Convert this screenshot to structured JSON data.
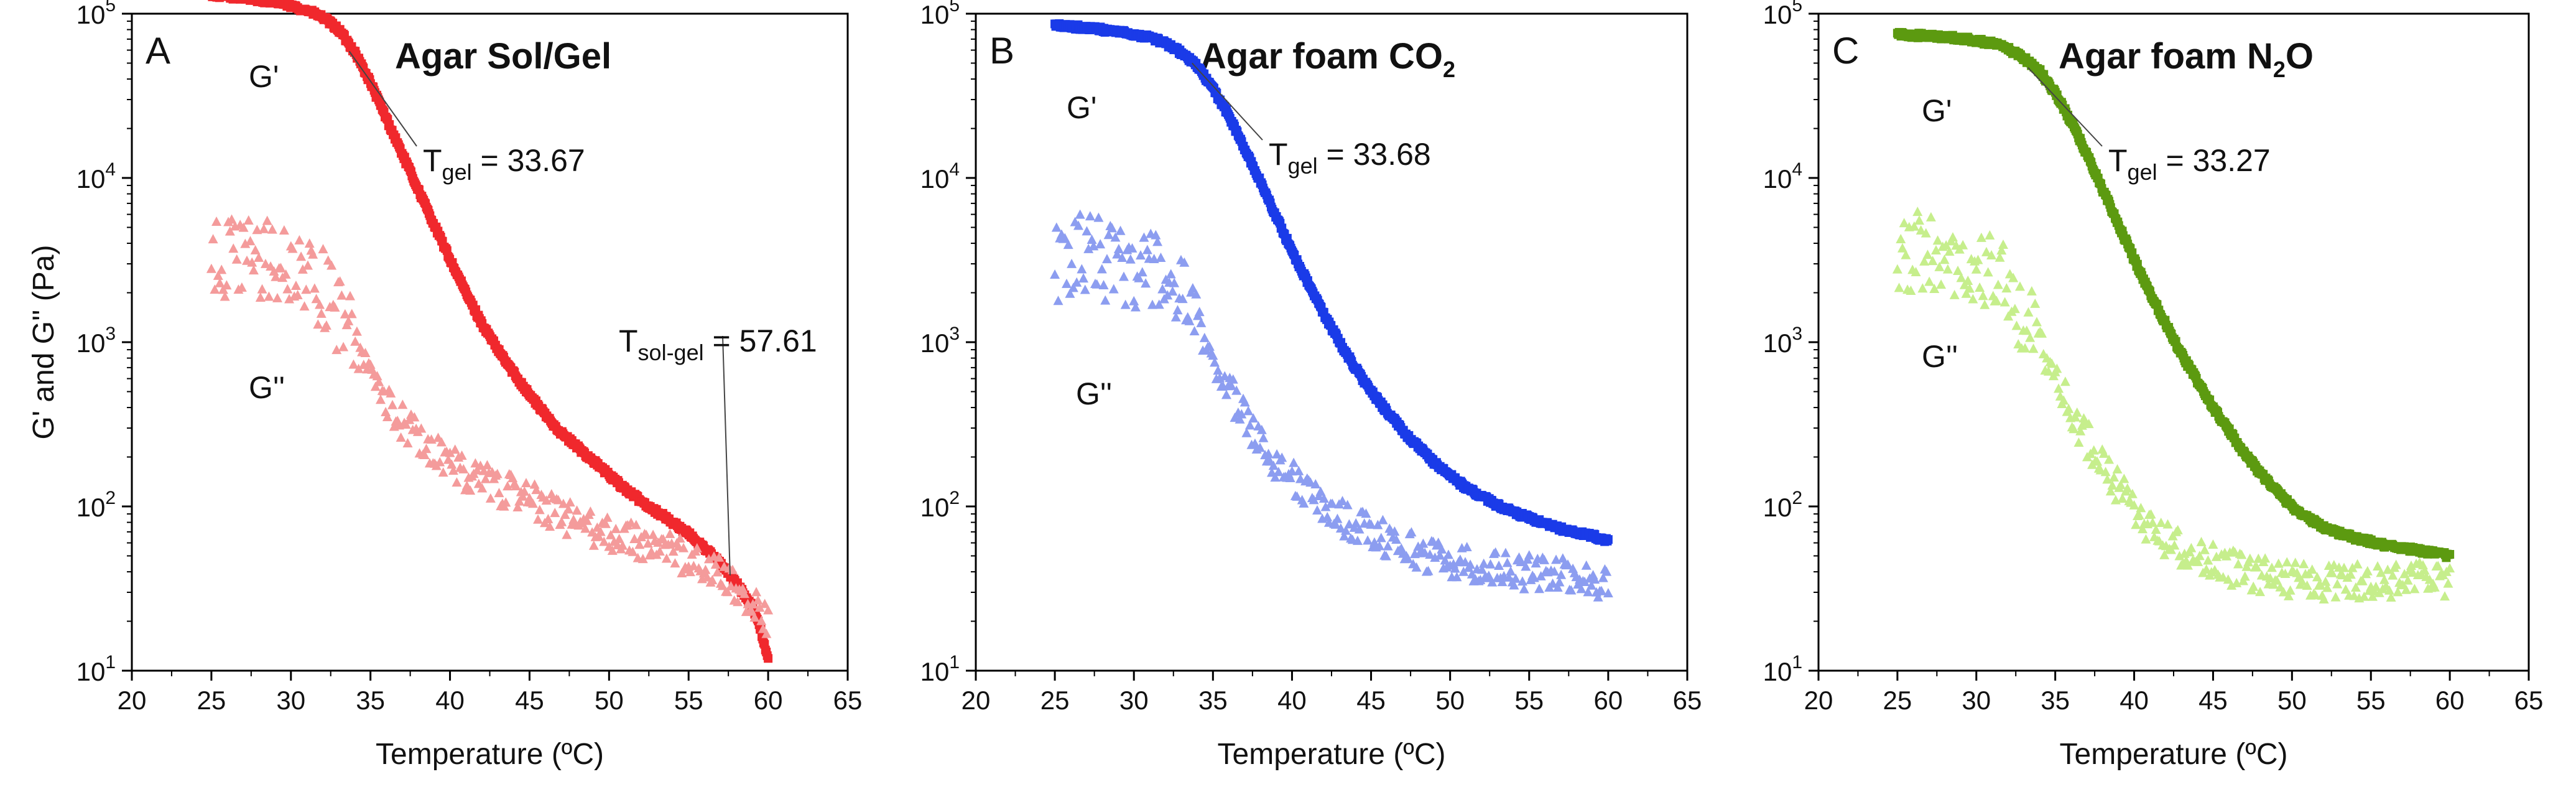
{
  "figure": {
    "panels": [
      {
        "letter": "A",
        "title": "Agar Sol/Gel",
        "title_sub": "",
        "title_suffix": "",
        "gprime_label": "G'",
        "gdouble_label": "G''",
        "annotations": [
          {
            "main": "T",
            "sub": "gel",
            "value": " = 33.67",
            "at_x": 33.67,
            "at_y": 59000
          },
          {
            "main": "T",
            "sub": "sol-gel",
            "value": " = 57.61",
            "at_x": 57.61,
            "at_y": 38
          }
        ]
      },
      {
        "letter": "B",
        "title": "Agar foam CO",
        "title_sub": "2",
        "title_suffix": "",
        "gprime_label": "G'",
        "gdouble_label": "G''",
        "annotations": [
          {
            "main": "T",
            "sub": "gel",
            "value": " = 33.68",
            "at_x": 33.68,
            "at_y": 50000
          }
        ]
      },
      {
        "letter": "C",
        "title": "Agar foam N",
        "title_sub": "2",
        "title_suffix": "O",
        "gprime_label": "G'",
        "gdouble_label": "G''",
        "annotations": [
          {
            "main": "T",
            "sub": "gel",
            "value": " = 33.27",
            "at_x": 33.27,
            "at_y": 47000
          }
        ]
      }
    ]
  },
  "chart_data": [
    {
      "type": "scatter",
      "title": "Agar Sol/Gel",
      "xlabel": "Temperature (ºC)",
      "ylabel": "G' and G'' (Pa)",
      "xlim": [
        20,
        65
      ],
      "ylim": [
        10,
        100000
      ],
      "yscale": "log",
      "xticks": [
        "20",
        "25",
        "30",
        "35",
        "40",
        "45",
        "50",
        "55",
        "60",
        "65"
      ],
      "yticks": [
        {
          "base": "10",
          "exp": "1"
        },
        {
          "base": "10",
          "exp": "2"
        },
        {
          "base": "10",
          "exp": "3"
        },
        {
          "base": "10",
          "exp": "4"
        },
        {
          "base": "10",
          "exp": "5"
        }
      ],
      "series": [
        {
          "name": "G'",
          "marker": "square",
          "color": "#f0282d",
          "x": [
            25,
            27,
            29,
            31,
            32,
            33,
            34,
            35,
            36,
            37,
            38,
            39,
            40,
            41,
            42,
            43,
            44,
            45,
            46,
            47,
            48,
            49,
            50,
            51,
            52,
            53,
            54,
            55,
            56,
            57,
            58,
            59,
            59.5,
            60
          ],
          "y": [
            130000,
            125000,
            118000,
            105000,
            95000,
            80000,
            59000,
            38000,
            23000,
            14000,
            8500,
            5200,
            3200,
            2000,
            1300,
            900,
            650,
            480,
            360,
            280,
            230,
            190,
            155,
            128,
            108,
            93,
            80,
            68,
            56,
            45,
            34,
            25,
            18,
            12
          ]
        },
        {
          "name": "G''",
          "marker": "triangle",
          "color": "#f49b9b",
          "x": [
            25,
            26,
            27,
            28,
            29,
            30,
            31,
            32,
            33,
            34,
            35,
            36,
            37,
            38,
            39,
            40,
            41,
            42,
            43,
            44,
            45,
            46,
            47,
            48,
            49,
            50,
            51,
            52,
            53,
            54,
            55,
            56,
            57,
            58,
            59,
            60
          ],
          "y": [
            3000,
            3200,
            3300,
            3200,
            3000,
            2800,
            2500,
            2100,
            1500,
            1000,
            600,
            450,
            330,
            260,
            220,
            190,
            160,
            145,
            132,
            120,
            110,
            98,
            88,
            80,
            74,
            68,
            64,
            61,
            57,
            53,
            48,
            44,
            39,
            32,
            26,
            20
          ]
        }
      ]
    },
    {
      "type": "scatter",
      "title": "Agar foam CO2",
      "xlabel": "Temperature (ºC)",
      "ylabel": "",
      "xlim": [
        20,
        65
      ],
      "ylim": [
        10,
        100000
      ],
      "yscale": "log",
      "xticks": [
        "20",
        "25",
        "30",
        "35",
        "40",
        "45",
        "50",
        "55",
        "60",
        "65"
      ],
      "yticks": [
        {
          "base": "10",
          "exp": "1"
        },
        {
          "base": "10",
          "exp": "2"
        },
        {
          "base": "10",
          "exp": "3"
        },
        {
          "base": "10",
          "exp": "4"
        },
        {
          "base": "10",
          "exp": "5"
        }
      ],
      "series": [
        {
          "name": "G'",
          "marker": "square",
          "color": "#1a3be8",
          "x": [
            25,
            27,
            29,
            31,
            32,
            33,
            34,
            35,
            36,
            37,
            38,
            39,
            40,
            41,
            42,
            43,
            44,
            45,
            46,
            47,
            48,
            49,
            50,
            51,
            52,
            53,
            54,
            55,
            56,
            57,
            58,
            59,
            60
          ],
          "y": [
            85000,
            82000,
            78000,
            72000,
            66000,
            58000,
            48000,
            35000,
            24000,
            15000,
            9500,
            5800,
            3600,
            2300,
            1500,
            1000,
            700,
            500,
            380,
            290,
            230,
            185,
            155,
            130,
            115,
            102,
            92,
            85,
            78,
            73,
            69,
            66,
            62
          ]
        },
        {
          "name": "G''",
          "marker": "triangle",
          "color": "#8c9df0",
          "x": [
            25,
            26,
            27,
            28,
            29,
            30,
            31,
            32,
            33,
            34,
            35,
            36,
            37,
            38,
            39,
            40,
            41,
            42,
            43,
            44,
            45,
            46,
            47,
            48,
            49,
            50,
            51,
            52,
            53,
            54,
            55,
            56,
            57,
            58,
            59,
            60
          ],
          "y": [
            3000,
            3300,
            3500,
            3200,
            3000,
            2900,
            2700,
            2400,
            1900,
            1300,
            800,
            520,
            350,
            250,
            190,
            150,
            120,
            100,
            88,
            78,
            70,
            64,
            58,
            53,
            50,
            47,
            45,
            43,
            42,
            41,
            40,
            39,
            38,
            37,
            36,
            35
          ]
        }
      ]
    },
    {
      "type": "scatter",
      "title": "Agar foam N2O",
      "xlabel": "Temperature (ºC)",
      "ylabel": "",
      "xlim": [
        20,
        65
      ],
      "ylim": [
        10,
        100000
      ],
      "yscale": "log",
      "xticks": [
        "20",
        "25",
        "30",
        "35",
        "40",
        "45",
        "50",
        "55",
        "60",
        "65"
      ],
      "yticks": [
        {
          "base": "10",
          "exp": "1"
        },
        {
          "base": "10",
          "exp": "2"
        },
        {
          "base": "10",
          "exp": "3"
        },
        {
          "base": "10",
          "exp": "4"
        },
        {
          "base": "10",
          "exp": "5"
        }
      ],
      "series": [
        {
          "name": "G'",
          "marker": "square",
          "color": "#5c9a10",
          "x": [
            25,
            27,
            29,
            31,
            32,
            33,
            34,
            35,
            36,
            37,
            38,
            39,
            40,
            41,
            42,
            43,
            44,
            45,
            46,
            47,
            48,
            49,
            50,
            51,
            52,
            53,
            54,
            55,
            56,
            57,
            58,
            59,
            60
          ],
          "y": [
            75000,
            73000,
            71000,
            66000,
            61000,
            54000,
            45000,
            33000,
            22000,
            14000,
            8500,
            5200,
            3200,
            2000,
            1300,
            850,
            580,
            400,
            290,
            210,
            160,
            125,
            100,
            85,
            75,
            69,
            64,
            61,
            58,
            56,
            54,
            52,
            50
          ]
        },
        {
          "name": "G''",
          "marker": "triangle",
          "color": "#c6ee8c",
          "x": [
            25,
            26,
            27,
            28,
            29,
            30,
            31,
            32,
            33,
            34,
            35,
            36,
            37,
            38,
            39,
            40,
            41,
            42,
            43,
            44,
            45,
            46,
            47,
            48,
            49,
            50,
            51,
            52,
            53,
            54,
            55,
            56,
            57,
            58,
            59,
            60
          ],
          "y": [
            3500,
            3600,
            3500,
            3300,
            3100,
            2800,
            2500,
            2100,
            1500,
            1000,
            600,
            380,
            260,
            180,
            130,
            95,
            75,
            62,
            55,
            50,
            46,
            43,
            40,
            38,
            37,
            36,
            35,
            35,
            35,
            35,
            35,
            35,
            36,
            36,
            36,
            36
          ]
        }
      ]
    }
  ]
}
